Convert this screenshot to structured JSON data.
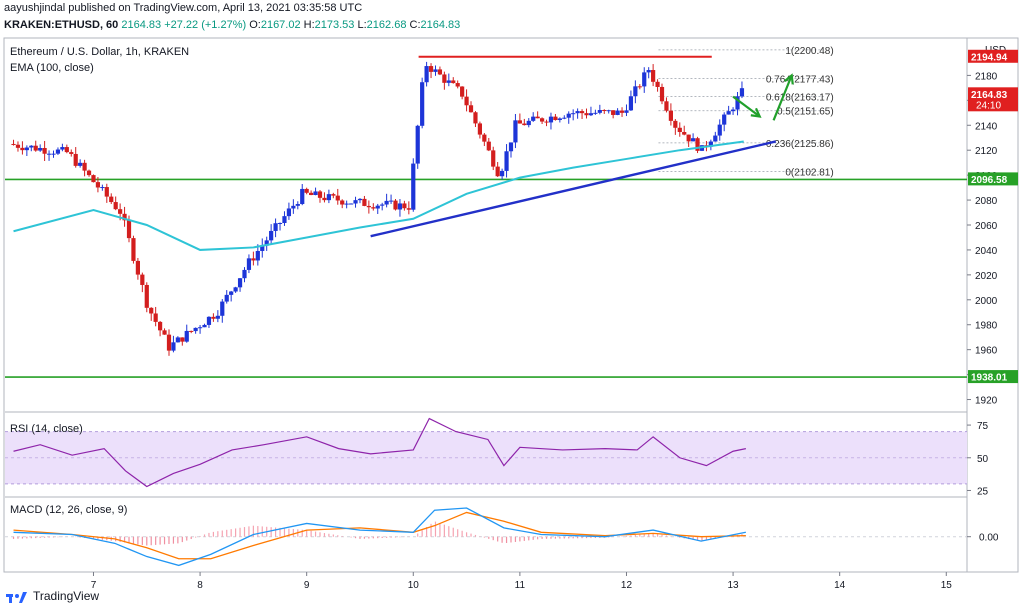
{
  "header": {
    "publisher_line": "aayushjindal published on TradingView.com, April 13, 2021 03:35:58 UTC",
    "symbol": "KRAKEN:ETHUSD, 60",
    "price": "2164.83",
    "change": "+27.22 (+1.27%)",
    "o_label": "O:",
    "o": "2167.02",
    "h_label": "H:",
    "h": "2173.53",
    "l_label": "L:",
    "l": "2162.68",
    "c_label": "C:",
    "c": "2164.83"
  },
  "footer": {
    "brand": "TradingView"
  },
  "colors": {
    "up": "#1d35d8",
    "down": "#d31e1e",
    "ema": "#2ec4d6",
    "support": "#27a127",
    "resistance": "#e02020",
    "trendline": "#2230c8",
    "rsi_fill": "#ece0fb",
    "rsi_line": "#8e24aa",
    "macd_line": "#2196f3",
    "signal_line": "#ff7a00"
  },
  "chart_data": [
    {
      "type": "candlestick",
      "title": "Ethereum / U.S. Dollar, 1h, KRAKEN",
      "indicator": "EMA (100, close)",
      "axis_currency": "USD",
      "ylim": [
        1910,
        2210
      ],
      "y_ticks": [
        1920,
        1940,
        1960,
        1980,
        2000,
        2020,
        2040,
        2060,
        2080,
        2100,
        2120,
        2140,
        2160,
        2180
      ],
      "x_ticks": [
        "7",
        "8",
        "9",
        "10",
        "11",
        "12",
        "13",
        "14",
        "15"
      ],
      "price_tags": [
        {
          "label": "2194.94",
          "value": 2194.94,
          "color": "#e02020"
        },
        {
          "label": "2164.83",
          "value": 2164.83,
          "color": "#e02020",
          "sub": "24:10"
        },
        {
          "label": "2096.58",
          "value": 2096.58,
          "color": "#27a127"
        },
        {
          "label": "1938.01",
          "value": 1938.01,
          "color": "#27a127"
        }
      ],
      "horizontal_lines": [
        {
          "name": "resistance",
          "value": 2194.94,
          "day_from": 10.05,
          "day_to": 12.8
        },
        {
          "name": "support-upper",
          "value": 2096.58
        },
        {
          "name": "support-lower",
          "value": 1938.01
        }
      ],
      "trendline": {
        "from": {
          "day": 9.6,
          "price": 2051
        },
        "to": {
          "day": 13.4,
          "price": 2127
        }
      },
      "fibonacci": {
        "levels": [
          {
            "label": "1(2200.48)",
            "value": 2200.48
          },
          {
            "label": "0.764(2177.43)",
            "value": 2177.43
          },
          {
            "label": "0.618(2163.17)",
            "value": 2163.17
          },
          {
            "label": "0.5(2151.65)",
            "value": 2151.65
          },
          {
            "label": "0.236(2125.86)",
            "value": 2125.86
          },
          {
            "label": "0(2102.81)",
            "value": 2102.81
          }
        ],
        "day_from": 12.3,
        "day_to": 13.85
      },
      "arrows": [
        {
          "from": {
            "day": 13.0,
            "price": 2163
          },
          "to": {
            "day": 13.25,
            "price": 2147
          }
        },
        {
          "from": {
            "day": 13.38,
            "price": 2144
          },
          "to": {
            "day": 13.55,
            "price": 2180
          }
        }
      ],
      "key_points": [
        {
          "day": 6.25,
          "price": 2125
        },
        {
          "day": 6.8,
          "price": 2118
        },
        {
          "day": 7.3,
          "price": 2070
        },
        {
          "day": 7.55,
          "price": 1995
        },
        {
          "day": 7.75,
          "price": 1962
        },
        {
          "day": 8.2,
          "price": 1990
        },
        {
          "day": 8.5,
          "price": 2030
        },
        {
          "day": 9.0,
          "price": 2085
        },
        {
          "day": 9.5,
          "price": 2078
        },
        {
          "day": 10.0,
          "price": 2075
        },
        {
          "day": 10.15,
          "price": 2190
        },
        {
          "day": 10.5,
          "price": 2165
        },
        {
          "day": 10.85,
          "price": 2100
        },
        {
          "day": 11.0,
          "price": 2140
        },
        {
          "day": 11.5,
          "price": 2150
        },
        {
          "day": 12.0,
          "price": 2150
        },
        {
          "day": 12.25,
          "price": 2185
        },
        {
          "day": 12.5,
          "price": 2140
        },
        {
          "day": 12.75,
          "price": 2120
        },
        {
          "day": 13.0,
          "price": 2150
        },
        {
          "day": 13.12,
          "price": 2166
        }
      ],
      "ema_points": [
        {
          "day": 6.25,
          "price": 2055
        },
        {
          "day": 7.0,
          "price": 2072
        },
        {
          "day": 7.5,
          "price": 2060
        },
        {
          "day": 8.0,
          "price": 2040
        },
        {
          "day": 8.5,
          "price": 2042
        },
        {
          "day": 9.0,
          "price": 2050
        },
        {
          "day": 9.5,
          "price": 2058
        },
        {
          "day": 10.0,
          "price": 2065
        },
        {
          "day": 10.5,
          "price": 2085
        },
        {
          "day": 11.0,
          "price": 2098
        },
        {
          "day": 11.5,
          "price": 2106
        },
        {
          "day": 12.0,
          "price": 2113
        },
        {
          "day": 12.5,
          "price": 2120
        },
        {
          "day": 13.1,
          "price": 2127
        }
      ]
    },
    {
      "type": "line",
      "title": "RSI (14, close)",
      "ylim": [
        20,
        85
      ],
      "y_ticks": [
        25,
        50,
        75
      ],
      "band": [
        30,
        70
      ],
      "points": [
        {
          "day": 6.25,
          "v": 55
        },
        {
          "day": 6.5,
          "v": 60
        },
        {
          "day": 6.8,
          "v": 52
        },
        {
          "day": 7.1,
          "v": 57
        },
        {
          "day": 7.3,
          "v": 40
        },
        {
          "day": 7.5,
          "v": 28
        },
        {
          "day": 7.75,
          "v": 38
        },
        {
          "day": 8.0,
          "v": 45
        },
        {
          "day": 8.3,
          "v": 56
        },
        {
          "day": 8.6,
          "v": 60
        },
        {
          "day": 9.0,
          "v": 66
        },
        {
          "day": 9.3,
          "v": 57
        },
        {
          "day": 9.6,
          "v": 53
        },
        {
          "day": 10.0,
          "v": 56
        },
        {
          "day": 10.15,
          "v": 80
        },
        {
          "day": 10.4,
          "v": 70
        },
        {
          "day": 10.7,
          "v": 64
        },
        {
          "day": 10.85,
          "v": 44
        },
        {
          "day": 11.0,
          "v": 58
        },
        {
          "day": 11.4,
          "v": 56
        },
        {
          "day": 11.8,
          "v": 57
        },
        {
          "day": 12.1,
          "v": 56
        },
        {
          "day": 12.25,
          "v": 66
        },
        {
          "day": 12.5,
          "v": 50
        },
        {
          "day": 12.75,
          "v": 44
        },
        {
          "day": 13.0,
          "v": 55
        },
        {
          "day": 13.12,
          "v": 57
        }
      ]
    },
    {
      "type": "line",
      "title": "MACD (12, 26, close, 9)",
      "ylim": [
        -16,
        18
      ],
      "y_ticks": [
        0
      ],
      "tick_label": "0.00",
      "macd": [
        {
          "day": 6.25,
          "v": 2
        },
        {
          "day": 6.8,
          "v": 1
        },
        {
          "day": 7.2,
          "v": -3
        },
        {
          "day": 7.5,
          "v": -9
        },
        {
          "day": 7.8,
          "v": -13
        },
        {
          "day": 8.1,
          "v": -8
        },
        {
          "day": 8.5,
          "v": 1
        },
        {
          "day": 9.0,
          "v": 6
        },
        {
          "day": 9.5,
          "v": 3
        },
        {
          "day": 10.0,
          "v": 2
        },
        {
          "day": 10.2,
          "v": 12
        },
        {
          "day": 10.5,
          "v": 13
        },
        {
          "day": 10.85,
          "v": 4
        },
        {
          "day": 11.2,
          "v": 1
        },
        {
          "day": 11.8,
          "v": 0
        },
        {
          "day": 12.25,
          "v": 3
        },
        {
          "day": 12.7,
          "v": -2
        },
        {
          "day": 13.12,
          "v": 2
        }
      ],
      "signal": [
        {
          "day": 6.25,
          "v": 3
        },
        {
          "day": 6.8,
          "v": 1
        },
        {
          "day": 7.2,
          "v": -1
        },
        {
          "day": 7.5,
          "v": -5
        },
        {
          "day": 7.8,
          "v": -10
        },
        {
          "day": 8.1,
          "v": -10
        },
        {
          "day": 8.5,
          "v": -4
        },
        {
          "day": 9.0,
          "v": 3
        },
        {
          "day": 9.5,
          "v": 4
        },
        {
          "day": 10.0,
          "v": 2
        },
        {
          "day": 10.2,
          "v": 5
        },
        {
          "day": 10.5,
          "v": 11
        },
        {
          "day": 10.85,
          "v": 7
        },
        {
          "day": 11.2,
          "v": 2
        },
        {
          "day": 11.8,
          "v": 0.5
        },
        {
          "day": 12.25,
          "v": 1.5
        },
        {
          "day": 12.7,
          "v": 0
        },
        {
          "day": 13.12,
          "v": 0.5
        }
      ]
    }
  ]
}
